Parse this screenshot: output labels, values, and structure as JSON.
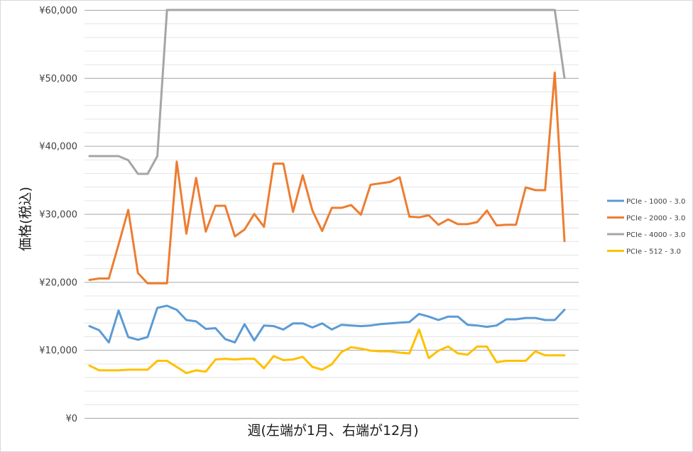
{
  "chart_data": {
    "type": "line",
    "title": "",
    "xlabel": "週(左端が1月、右端が12月)",
    "ylabel": "価格(税込)",
    "ylim": [
      0,
      60000
    ],
    "yticks": [
      0,
      10000,
      20000,
      30000,
      40000,
      50000,
      60000
    ],
    "ytick_labels": [
      "¥0",
      "¥10,000",
      "¥20,000",
      "¥30,000",
      "¥40,000",
      "¥50,000",
      "¥60,000"
    ],
    "minor_gridlines_step": 2000,
    "x": [
      1,
      2,
      3,
      4,
      5,
      6,
      7,
      8,
      9,
      10,
      11,
      12,
      13,
      14,
      15,
      16,
      17,
      18,
      19,
      20,
      21,
      22,
      23,
      24,
      25,
      26,
      27,
      28,
      29,
      30,
      31,
      32,
      33,
      34,
      35,
      36,
      37,
      38,
      39,
      40,
      41,
      42,
      43,
      44,
      45,
      46,
      47,
      48,
      49,
      50
    ],
    "grid": true,
    "legend_position": "right",
    "series": [
      {
        "name": "PCIe - 1000 - 3.0",
        "color": "#5b9bd5",
        "values": [
          13500,
          12900,
          11100,
          15800,
          11900,
          11500,
          11900,
          16200,
          16500,
          15900,
          14400,
          14200,
          13100,
          13200,
          11600,
          11100,
          13800,
          11400,
          13600,
          13500,
          13000,
          13900,
          13900,
          13300,
          13900,
          13000,
          13700,
          13600,
          13500,
          13600,
          13800,
          13900,
          14000,
          14100,
          15300,
          14900,
          14400,
          14900,
          14900,
          13700,
          13600,
          13400,
          13600,
          14500,
          14500,
          14700,
          14700,
          14400,
          14400,
          15900
        ]
      },
      {
        "name": "PCIe - 2000 - 3.0",
        "color": "#ed7d31",
        "values": [
          20300,
          20500,
          20500,
          25500,
          30600,
          21300,
          19800,
          19800,
          19800,
          37700,
          27100,
          35300,
          27400,
          31200,
          31200,
          26700,
          27700,
          30000,
          28100,
          37400,
          37400,
          30300,
          35700,
          30500,
          27500,
          30900,
          30900,
          31300,
          29900,
          34300,
          34500,
          34700,
          35400,
          29600,
          29500,
          29800,
          28400,
          29200,
          28500,
          28500,
          28800,
          30500,
          28300,
          28400,
          28400,
          33900,
          33500,
          33500,
          50800,
          26000
        ]
      },
      {
        "name": "PCIe - 4000 - 3.0",
        "color": "#a5a5a5",
        "values": [
          38500,
          38500,
          38500,
          38500,
          37900,
          35900,
          35900,
          38500,
          60000,
          60000,
          60000,
          60000,
          60000,
          60000,
          60000,
          60000,
          60000,
          60000,
          60000,
          60000,
          60000,
          60000,
          60000,
          60000,
          60000,
          60000,
          60000,
          60000,
          60000,
          60000,
          60000,
          60000,
          60000,
          60000,
          60000,
          60000,
          60000,
          60000,
          60000,
          60000,
          60000,
          60000,
          60000,
          60000,
          60000,
          60000,
          60000,
          60000,
          60000,
          50000
        ]
      },
      {
        "name": "PCIe - 512 - 3.0",
        "color": "#ffc000",
        "values": [
          7700,
          7000,
          7000,
          7000,
          7100,
          7100,
          7100,
          8400,
          8400,
          7500,
          6600,
          7000,
          6800,
          8600,
          8700,
          8600,
          8700,
          8700,
          7300,
          9100,
          8500,
          8600,
          9000,
          7500,
          7100,
          7900,
          9700,
          10400,
          10200,
          9900,
          9800,
          9800,
          9600,
          9500,
          13000,
          8800,
          9900,
          10500,
          9500,
          9300,
          10500,
          10500,
          8200,
          8400,
          8400,
          8400,
          9800,
          9200,
          9200,
          9200
        ]
      }
    ]
  }
}
